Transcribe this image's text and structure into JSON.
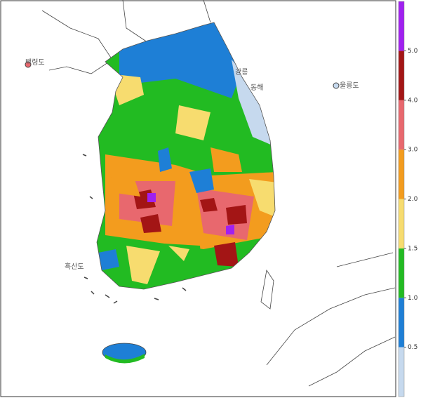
{
  "map": {
    "place_labels": [
      "백령도",
      "울릉도",
      "강릉",
      "동해",
      "흑산도"
    ]
  },
  "colorbar": {
    "colors": [
      "#c6d9ee",
      "#1e7fd6",
      "#22bb22",
      "#f7dc6f",
      "#f39c1e",
      "#e8686e",
      "#a31515",
      "#a020f0"
    ],
    "ticks": [
      0.5,
      {
        "value": 1,
        "label": "1.0"
      },
      1.5,
      {
        "value": 2,
        "label": "2.0"
      },
      {
        "value": 3,
        "label": "3.0"
      },
      {
        "value": 4,
        "label": "4.0"
      },
      {
        "value": 5,
        "label": "5.0"
      }
    ]
  }
}
